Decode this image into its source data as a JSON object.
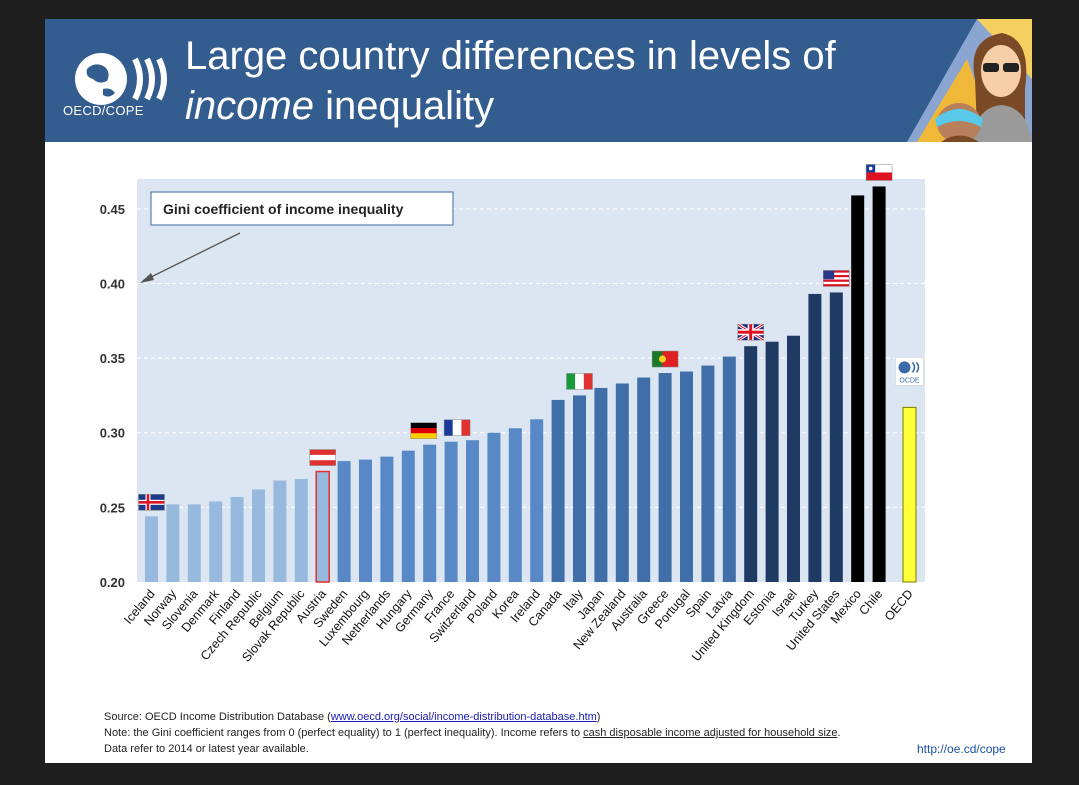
{
  "header": {
    "title_line1": "Large country differences in levels of",
    "title_line2_italic": "income",
    "title_line2_rest": " inequality",
    "logo_text": "OECD/COPE"
  },
  "chart_data": {
    "type": "bar",
    "title": "Gini coefficient of income inequality",
    "ylim": [
      0.2,
      0.47
    ],
    "yticks": [
      "0.20",
      "0.25",
      "0.30",
      "0.35",
      "0.40",
      "0.45"
    ],
    "categories": [
      "Iceland",
      "Norway",
      "Slovenia",
      "Denmark",
      "Finland",
      "Czech Republic",
      "Belgium",
      "Slovak Republic",
      "Austria",
      "Sweden",
      "Luxembourg",
      "Netherlands",
      "Hungary",
      "Germany",
      "France",
      "Switzerland",
      "Poland",
      "Korea",
      "Ireland",
      "Canada",
      "Italy",
      "Japan",
      "New Zealand",
      "Australia",
      "Greece",
      "Portugal",
      "Spain",
      "Latvia",
      "United Kingdom",
      "Estonia",
      "Israel",
      "Turkey",
      "United States",
      "Mexico",
      "Chile",
      "OECD"
    ],
    "values": [
      0.244,
      0.252,
      0.252,
      0.254,
      0.257,
      0.262,
      0.268,
      0.269,
      0.274,
      0.281,
      0.282,
      0.284,
      0.288,
      0.292,
      0.294,
      0.295,
      0.3,
      0.303,
      0.309,
      0.322,
      0.325,
      0.33,
      0.333,
      0.337,
      0.34,
      0.341,
      0.345,
      0.351,
      0.358,
      0.361,
      0.365,
      0.393,
      0.394,
      0.459,
      0.465,
      0.317
    ],
    "color_groups": [
      "light",
      "light",
      "light",
      "light",
      "light",
      "light",
      "light",
      "light",
      "highlight",
      "mid",
      "mid",
      "mid",
      "mid",
      "mid",
      "mid",
      "mid",
      "mid",
      "mid",
      "mid",
      "dark",
      "dark",
      "dark",
      "dark",
      "dark",
      "dark",
      "dark",
      "dark",
      "dark",
      "navy",
      "navy",
      "navy",
      "navy",
      "navy",
      "black",
      "black",
      "oecd"
    ],
    "colors": {
      "light": "#98b9de",
      "highlight": "#98b9de",
      "highlight_border": "#e03030",
      "mid": "#5888c6",
      "dark": "#3f6ea8",
      "navy": "#1f3b64",
      "black": "#000000",
      "oecd": "#ffff3a",
      "oecd_border": "#7a7a00",
      "plot_bg": "#dce6f2"
    },
    "flags": [
      {
        "country": "Iceland",
        "flag": "iceland"
      },
      {
        "country": "Austria",
        "flag": "austria"
      },
      {
        "country": "Germany",
        "flag": "germany"
      },
      {
        "country": "France",
        "flag": "france"
      },
      {
        "country": "Italy",
        "flag": "italy"
      },
      {
        "country": "Greece",
        "flag": "portugal"
      },
      {
        "country": "United Kingdom",
        "flag": "uk"
      },
      {
        "country": "United States",
        "flag": "usa"
      },
      {
        "country": "Chile",
        "flag": "chile"
      }
    ],
    "oecd_badge_text": "OCDE"
  },
  "footer": {
    "source_prefix": "Source: OECD Income Distribution Database (",
    "source_link": "www.oecd.org/social/income-distribution-database.htm",
    "source_suffix": ")",
    "note_prefix": "Note: the Gini coefficient ranges from 0 (perfect equality) to 1 (perfect inequality). Income refers to ",
    "note_underlined": "cash disposable income adjusted for household size",
    "note_suffix": ".",
    "data_note": "Data refer to 2014 or latest year available.",
    "url": "http://oe.cd/cope"
  }
}
